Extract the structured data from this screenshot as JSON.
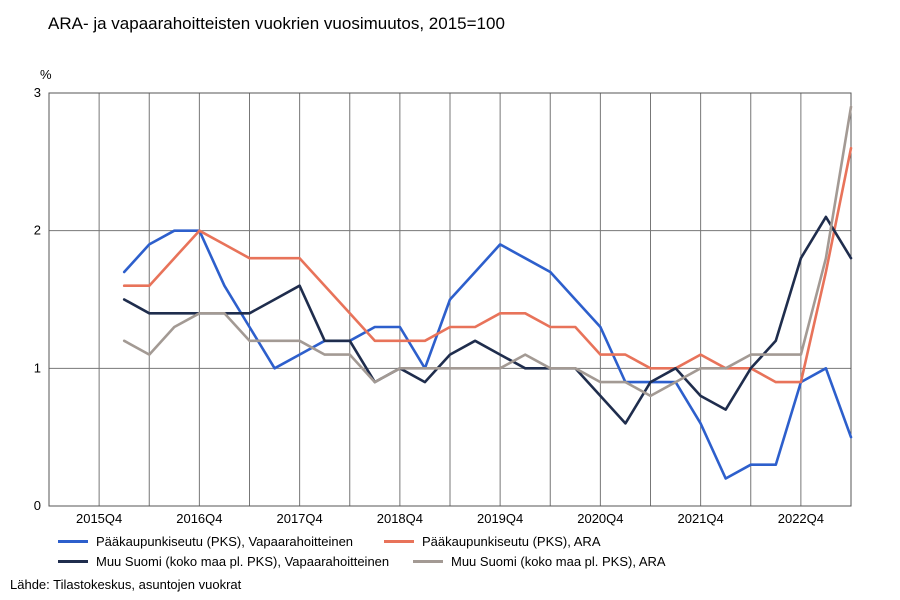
{
  "chart_data": {
    "type": "line",
    "title": "ARA- ja vapaarahoitteisten vuokrien vuosimuutos, 2015=100",
    "ylabel": "%",
    "xlabel": "",
    "ylim": [
      0,
      3
    ],
    "yticks": [
      0,
      1,
      2,
      3
    ],
    "grid": true,
    "legend_position": "bottom",
    "x": [
      "2015Q2",
      "2015Q3",
      "2015Q4",
      "2016Q1",
      "2016Q2",
      "2016Q3",
      "2016Q4",
      "2017Q1",
      "2017Q2",
      "2017Q3",
      "2017Q4",
      "2018Q1",
      "2018Q2",
      "2018Q3",
      "2018Q4",
      "2019Q1",
      "2019Q2",
      "2019Q3",
      "2019Q4",
      "2020Q1",
      "2020Q2",
      "2020Q3",
      "2020Q4",
      "2021Q1",
      "2021Q2",
      "2021Q3",
      "2021Q4",
      "2022Q1",
      "2022Q2",
      "2022Q3",
      "2022Q4",
      "2023Q1",
      "2023Q2"
    ],
    "xtick_labels": [
      "2015Q4",
      "2016Q4",
      "2017Q4",
      "2018Q4",
      "2019Q4",
      "2020Q4",
      "2021Q4",
      "2022Q4"
    ],
    "series": [
      {
        "name": "Pääkaupunkiseutu (PKS), Vapaarahoitteinen",
        "color": "#2d5fcc",
        "values": [
          null,
          null,
          null,
          1.7,
          1.9,
          2.0,
          2.0,
          1.6,
          1.3,
          1.0,
          1.1,
          1.2,
          1.2,
          1.3,
          1.3,
          1.0,
          1.5,
          1.7,
          1.9,
          1.8,
          1.7,
          1.5,
          1.3,
          0.9,
          0.9,
          0.9,
          0.6,
          0.2,
          0.3,
          0.3,
          0.9,
          1.0,
          0.5
        ]
      },
      {
        "name": "Pääkaupunkiseutu (PKS), ARA",
        "color": "#e8735a",
        "values": [
          null,
          null,
          null,
          1.6,
          1.6,
          1.8,
          2.0,
          1.9,
          1.8,
          1.8,
          1.8,
          1.6,
          1.4,
          1.2,
          1.2,
          1.2,
          1.3,
          1.3,
          1.4,
          1.4,
          1.3,
          1.3,
          1.1,
          1.1,
          1.0,
          1.0,
          1.1,
          1.0,
          1.0,
          0.9,
          0.9,
          1.7,
          2.6
        ]
      },
      {
        "name": "Muu Suomi (koko maa pl. PKS), Vapaarahoitteinen",
        "color": "#1f2d4d",
        "values": [
          null,
          null,
          null,
          1.5,
          1.4,
          1.4,
          1.4,
          1.4,
          1.4,
          1.5,
          1.6,
          1.2,
          1.2,
          0.9,
          1.0,
          0.9,
          1.1,
          1.2,
          1.1,
          1.0,
          1.0,
          1.0,
          0.8,
          0.6,
          0.9,
          1.0,
          0.8,
          0.7,
          1.0,
          1.2,
          1.8,
          2.1,
          1.8
        ]
      },
      {
        "name": "Muu Suomi (koko maa pl. PKS), ARA",
        "color": "#a39a94",
        "values": [
          null,
          null,
          null,
          1.2,
          1.1,
          1.3,
          1.4,
          1.4,
          1.2,
          1.2,
          1.2,
          1.1,
          1.1,
          0.9,
          1.0,
          1.0,
          1.0,
          1.0,
          1.0,
          1.1,
          1.0,
          1.0,
          0.9,
          0.9,
          0.8,
          0.9,
          1.0,
          1.0,
          1.1,
          1.1,
          1.1,
          1.8,
          2.9
        ]
      }
    ]
  },
  "source_note": "Lähde: Tilastokeskus, asuntojen vuokrat"
}
